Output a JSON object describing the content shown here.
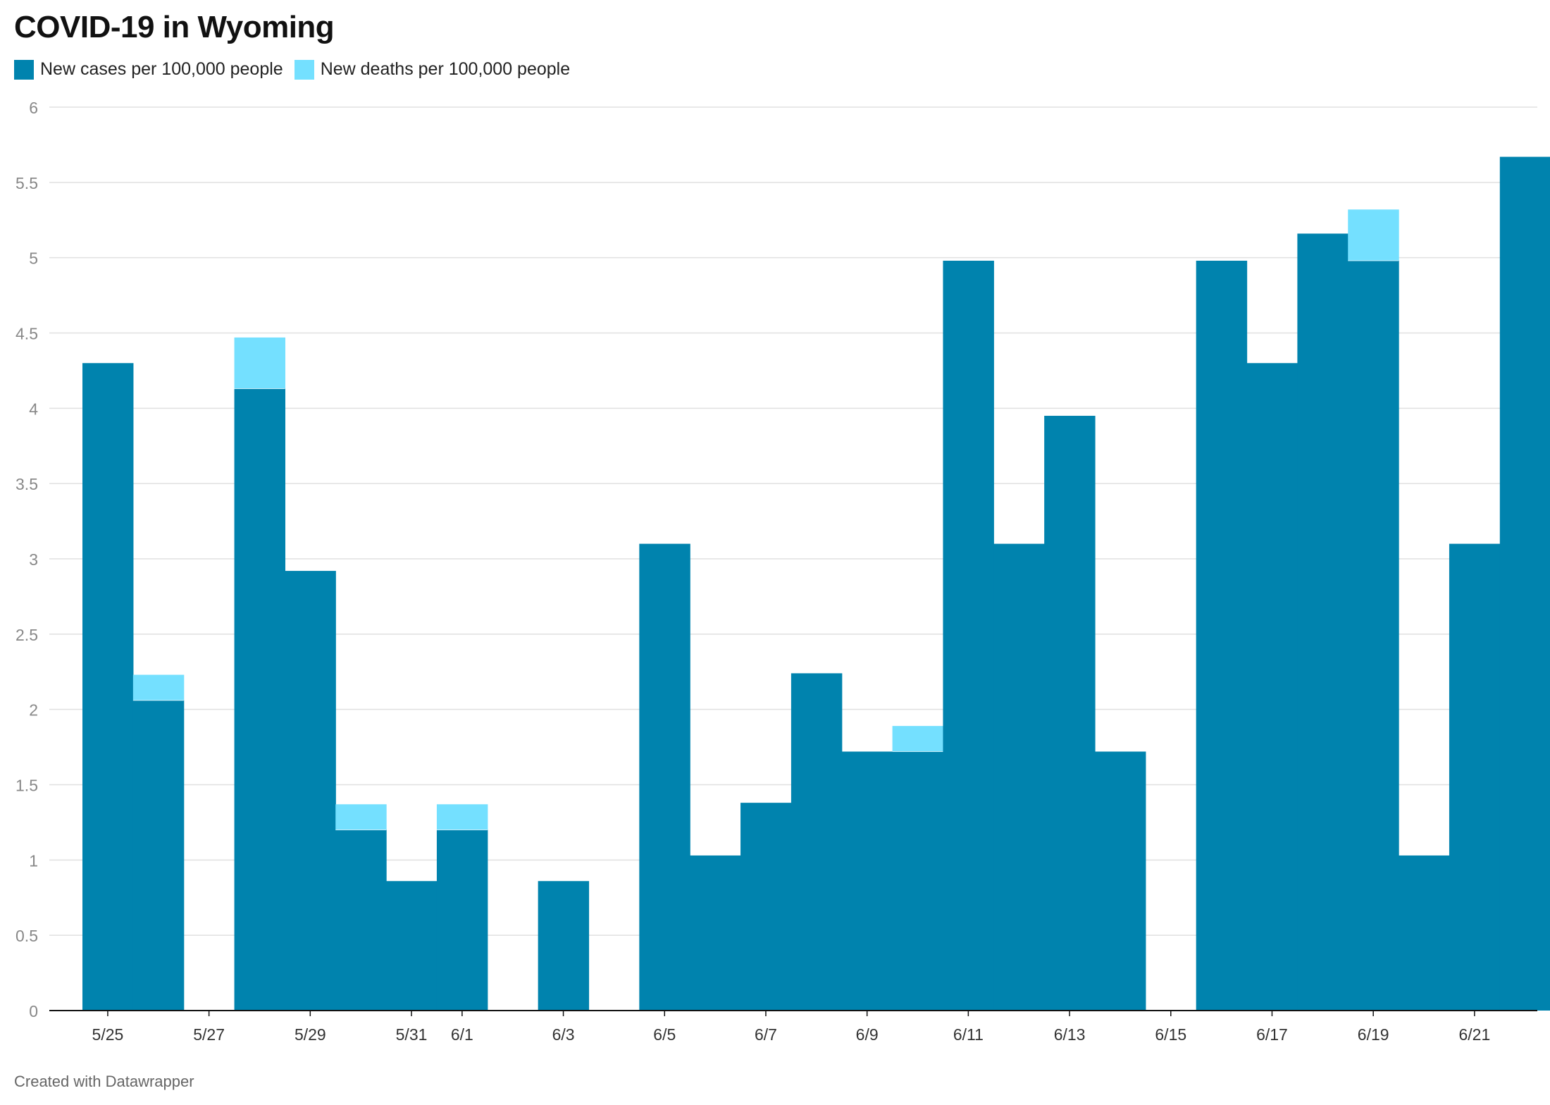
{
  "title": "COVID-19 in Wyoming",
  "footer": "Created with Datawrapper",
  "colors": {
    "cases": "#0083ae",
    "deaths": "#74e0ff",
    "grid": "#e0e0e0",
    "axis": "#111111",
    "tick_text": "#888888"
  },
  "chart_data": {
    "type": "bar",
    "stacked": true,
    "title": "COVID-19 in Wyoming",
    "xlabel": "",
    "ylabel": "",
    "ylim": [
      0,
      6
    ],
    "yticks": [
      0,
      0.5,
      1,
      1.5,
      2,
      2.5,
      3,
      3.5,
      4,
      4.5,
      5,
      5.5,
      6
    ],
    "grid": true,
    "legend_position": "top-left",
    "categories": [
      "5/25",
      "5/26",
      "5/27",
      "5/28",
      "5/29",
      "5/30",
      "5/31",
      "6/1",
      "6/2",
      "6/3",
      "6/4",
      "6/5",
      "6/6",
      "6/7",
      "6/8",
      "6/9",
      "6/10",
      "6/11",
      "6/12",
      "6/13",
      "6/14",
      "6/15",
      "6/16",
      "6/17",
      "6/18",
      "6/19",
      "6/20",
      "6/21",
      "6/22"
    ],
    "xtick_labels": [
      "5/25",
      "5/27",
      "5/29",
      "5/31",
      "6/1",
      "6/3",
      "6/5",
      "6/7",
      "6/9",
      "6/11",
      "6/13",
      "6/15",
      "6/17",
      "6/19",
      "6/21"
    ],
    "series": [
      {
        "name": "New cases per 100,000 people",
        "color": "#0083ae",
        "values": [
          4.3,
          2.06,
          0,
          4.13,
          2.92,
          1.2,
          0.86,
          1.2,
          0,
          0.86,
          0,
          3.1,
          1.03,
          1.38,
          2.24,
          1.72,
          1.72,
          4.98,
          3.1,
          3.95,
          1.72,
          0,
          4.98,
          4.3,
          5.16,
          4.98,
          1.03,
          3.1,
          5.67
        ]
      },
      {
        "name": "New deaths per 100,000 people",
        "color": "#74e0ff",
        "values": [
          0,
          0.17,
          0,
          0.34,
          0,
          0.17,
          0,
          0.17,
          0,
          0,
          0,
          0,
          0,
          0,
          0,
          0,
          0.17,
          0,
          0,
          0,
          0,
          0,
          0,
          0,
          0,
          0.34,
          0,
          0,
          0
        ]
      }
    ]
  }
}
